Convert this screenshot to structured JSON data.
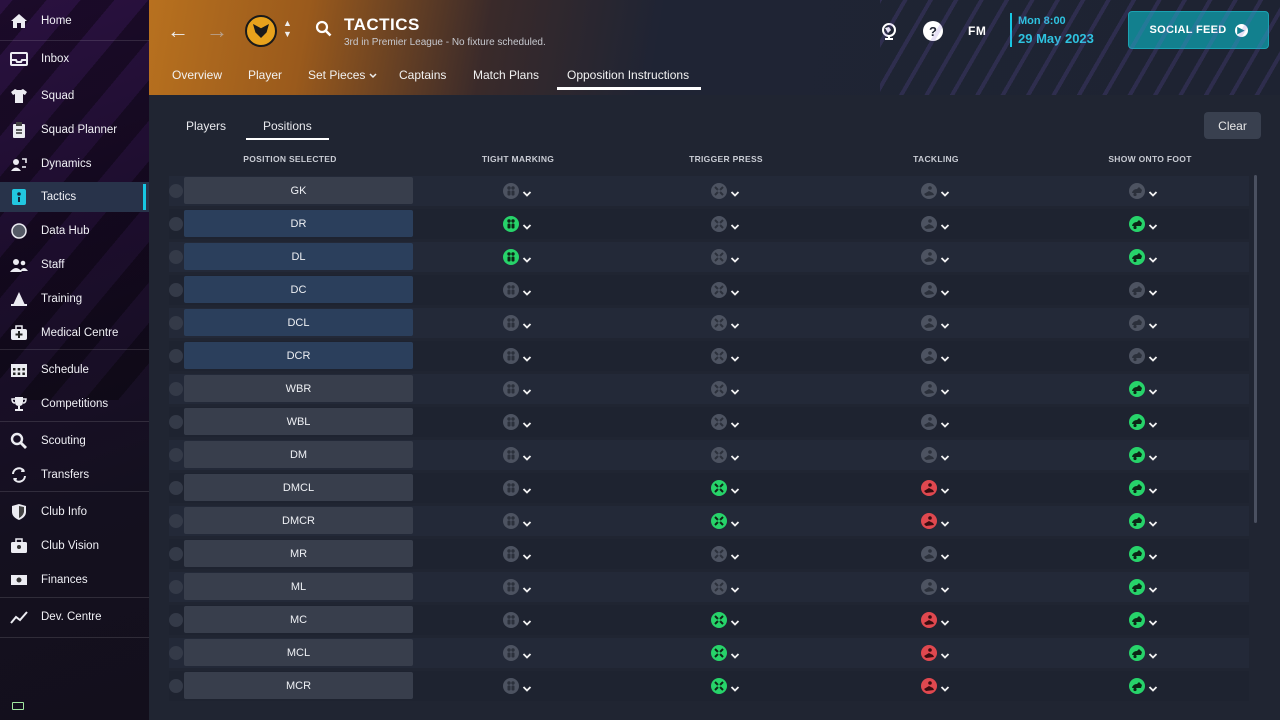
{
  "sidebar": {
    "items": [
      {
        "label": "Home",
        "icon": "home-icon"
      },
      {
        "label": "Inbox",
        "icon": "inbox-icon"
      },
      {
        "label": "Squad",
        "icon": "shirt-icon"
      },
      {
        "label": "Squad Planner",
        "icon": "clipboard-icon"
      },
      {
        "label": "Dynamics",
        "icon": "dynamics-icon"
      },
      {
        "label": "Tactics",
        "icon": "tactics-board-icon",
        "active": true
      },
      {
        "label": "Data Hub",
        "icon": "data-hub-icon"
      },
      {
        "label": "Staff",
        "icon": "staff-icon"
      },
      {
        "label": "Training",
        "icon": "training-cone-icon"
      },
      {
        "label": "Medical Centre",
        "icon": "medical-kit-icon"
      },
      {
        "label": "Schedule",
        "icon": "calendar-icon"
      },
      {
        "label": "Competitions",
        "icon": "trophy-icon"
      },
      {
        "label": "Scouting",
        "icon": "magnifier-icon"
      },
      {
        "label": "Transfers",
        "icon": "transfer-arrows-icon"
      },
      {
        "label": "Club Info",
        "icon": "shield-icon"
      },
      {
        "label": "Club Vision",
        "icon": "briefcase-icon"
      },
      {
        "label": "Finances",
        "icon": "money-icon"
      },
      {
        "label": "Dev. Centre",
        "icon": "trend-line-icon"
      }
    ]
  },
  "header": {
    "title": "TACTICS",
    "subtitle": "3rd in Premier League - No fixture scheduled.",
    "fm_logo": "FM",
    "date_day": "Mon 8:00",
    "date_date": "29 May 2023",
    "social_feed_label": "SOCIAL FEED",
    "help_label": "?",
    "tabs": [
      {
        "label": "Overview"
      },
      {
        "label": "Player"
      },
      {
        "label": "Set Pieces"
      },
      {
        "label": "Captains"
      },
      {
        "label": "Match Plans"
      },
      {
        "label": "Opposition Instructions",
        "active": true
      }
    ]
  },
  "content": {
    "subtabs": [
      {
        "label": "Players"
      },
      {
        "label": "Positions",
        "active": true
      }
    ],
    "clear_label": "Clear",
    "columns": [
      "POSITION SELECTED",
      "TIGHT MARKING",
      "TRIGGER PRESS",
      "TACKLING",
      "SHOW ONTO FOOT"
    ],
    "rows": [
      {
        "position": "GK",
        "tight_marking": "none",
        "trigger_press": "none",
        "tackling": "none",
        "show_onto_foot": "none"
      },
      {
        "position": "DR",
        "tight_marking": "always",
        "trigger_press": "none",
        "tackling": "none",
        "show_onto_foot": "weaker"
      },
      {
        "position": "DL",
        "tight_marking": "always",
        "trigger_press": "none",
        "tackling": "none",
        "show_onto_foot": "weaker"
      },
      {
        "position": "DC",
        "tight_marking": "none",
        "trigger_press": "none",
        "tackling": "none",
        "show_onto_foot": "none"
      },
      {
        "position": "DCL",
        "tight_marking": "none",
        "trigger_press": "none",
        "tackling": "none",
        "show_onto_foot": "none"
      },
      {
        "position": "DCR",
        "tight_marking": "none",
        "trigger_press": "none",
        "tackling": "none",
        "show_onto_foot": "none"
      },
      {
        "position": "WBR",
        "tight_marking": "none",
        "trigger_press": "none",
        "tackling": "none",
        "show_onto_foot": "weaker"
      },
      {
        "position": "WBL",
        "tight_marking": "none",
        "trigger_press": "none",
        "tackling": "none",
        "show_onto_foot": "weaker"
      },
      {
        "position": "DM",
        "tight_marking": "none",
        "trigger_press": "none",
        "tackling": "none",
        "show_onto_foot": "weaker"
      },
      {
        "position": "DMCL",
        "tight_marking": "none",
        "trigger_press": "always",
        "tackling": "hard",
        "show_onto_foot": "weaker"
      },
      {
        "position": "DMCR",
        "tight_marking": "none",
        "trigger_press": "always",
        "tackling": "hard",
        "show_onto_foot": "weaker"
      },
      {
        "position": "MR",
        "tight_marking": "none",
        "trigger_press": "none",
        "tackling": "none",
        "show_onto_foot": "weaker"
      },
      {
        "position": "ML",
        "tight_marking": "none",
        "trigger_press": "none",
        "tackling": "none",
        "show_onto_foot": "weaker"
      },
      {
        "position": "MC",
        "tight_marking": "none",
        "trigger_press": "always",
        "tackling": "hard",
        "show_onto_foot": "weaker"
      },
      {
        "position": "MCL",
        "tight_marking": "none",
        "trigger_press": "always",
        "tackling": "hard",
        "show_onto_foot": "weaker"
      },
      {
        "position": "MCR",
        "tight_marking": "none",
        "trigger_press": "always",
        "tackling": "hard",
        "show_onto_foot": "weaker"
      }
    ]
  },
  "colors": {
    "accent": "#17c7e3",
    "active_green": "#27d36a",
    "hard_red": "#e0484f",
    "inactive_grey": "#4d5361",
    "social_feed": "#12808e"
  }
}
